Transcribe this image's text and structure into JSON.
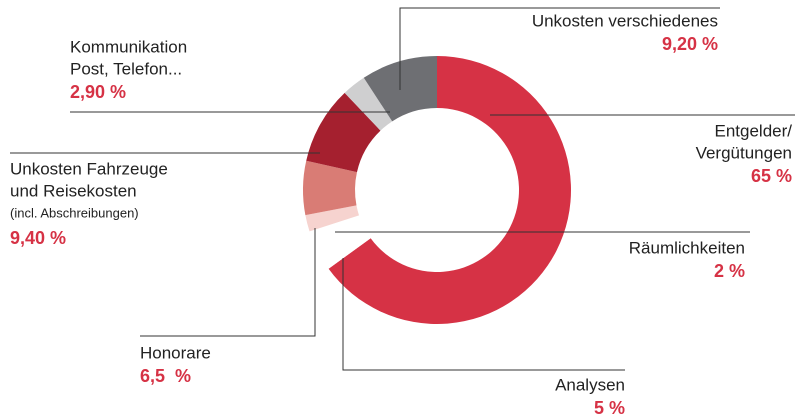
{
  "chart_data": {
    "type": "donut",
    "categories": [
      [
        "Entgelder/",
        "Vergütungen"
      ],
      [
        "Analysen"
      ],
      [
        "Räumlichkeiten"
      ],
      [
        "Honorare"
      ],
      [
        "Unkosten Fahrzeuge",
        "und Reisekosten",
        "(incl. Abschreibungen)"
      ],
      [
        "Kommunikation",
        "Post, Telefon..."
      ],
      [
        "Unkosten verschiedenes"
      ]
    ],
    "values": [
      65,
      5,
      2,
      6.5,
      9.4,
      2.9,
      9.2
    ],
    "value_labels": [
      "65 %",
      "5 %",
      "2 %",
      "6,5  %",
      "9,40 %",
      "2,90 %",
      "9,20 %"
    ],
    "colors": [
      "#d63245",
      "#ffffff",
      "#f6d3cf",
      "#d97c75",
      "#a5202f",
      "#cfcfd0",
      "#6e6f73"
    ]
  }
}
